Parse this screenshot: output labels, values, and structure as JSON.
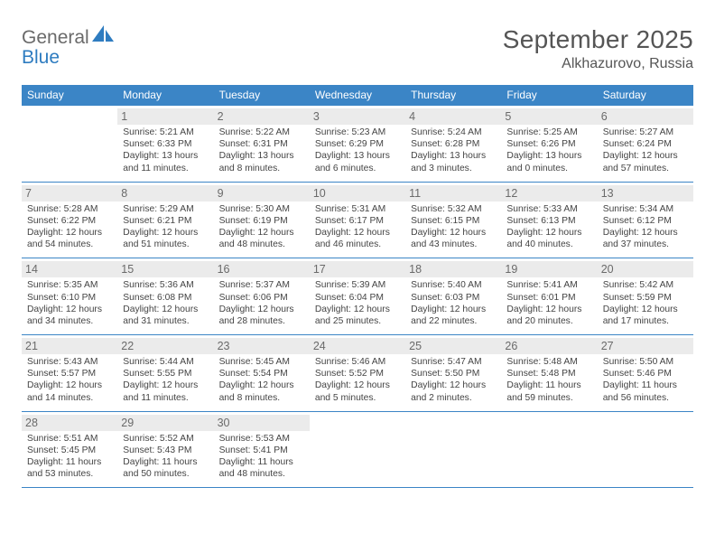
{
  "logo": {
    "word1": "General",
    "word2": "Blue"
  },
  "title": "September 2025",
  "location": "Alkhazurovo, Russia",
  "colors": {
    "header_bg": "#3b85c6",
    "header_text": "#ffffff",
    "daynum_bg": "#ebebeb",
    "daynum_text": "#6a6a6a",
    "body_text": "#444444",
    "title_text": "#555555",
    "rule": "#3b85c6"
  },
  "day_names": [
    "Sunday",
    "Monday",
    "Tuesday",
    "Wednesday",
    "Thursday",
    "Friday",
    "Saturday"
  ],
  "weeks": [
    [
      null,
      {
        "n": "1",
        "sr": "Sunrise: 5:21 AM",
        "ss": "Sunset: 6:33 PM",
        "d1": "Daylight: 13 hours",
        "d2": "and 11 minutes."
      },
      {
        "n": "2",
        "sr": "Sunrise: 5:22 AM",
        "ss": "Sunset: 6:31 PM",
        "d1": "Daylight: 13 hours",
        "d2": "and 8 minutes."
      },
      {
        "n": "3",
        "sr": "Sunrise: 5:23 AM",
        "ss": "Sunset: 6:29 PM",
        "d1": "Daylight: 13 hours",
        "d2": "and 6 minutes."
      },
      {
        "n": "4",
        "sr": "Sunrise: 5:24 AM",
        "ss": "Sunset: 6:28 PM",
        "d1": "Daylight: 13 hours",
        "d2": "and 3 minutes."
      },
      {
        "n": "5",
        "sr": "Sunrise: 5:25 AM",
        "ss": "Sunset: 6:26 PM",
        "d1": "Daylight: 13 hours",
        "d2": "and 0 minutes."
      },
      {
        "n": "6",
        "sr": "Sunrise: 5:27 AM",
        "ss": "Sunset: 6:24 PM",
        "d1": "Daylight: 12 hours",
        "d2": "and 57 minutes."
      }
    ],
    [
      {
        "n": "7",
        "sr": "Sunrise: 5:28 AM",
        "ss": "Sunset: 6:22 PM",
        "d1": "Daylight: 12 hours",
        "d2": "and 54 minutes."
      },
      {
        "n": "8",
        "sr": "Sunrise: 5:29 AM",
        "ss": "Sunset: 6:21 PM",
        "d1": "Daylight: 12 hours",
        "d2": "and 51 minutes."
      },
      {
        "n": "9",
        "sr": "Sunrise: 5:30 AM",
        "ss": "Sunset: 6:19 PM",
        "d1": "Daylight: 12 hours",
        "d2": "and 48 minutes."
      },
      {
        "n": "10",
        "sr": "Sunrise: 5:31 AM",
        "ss": "Sunset: 6:17 PM",
        "d1": "Daylight: 12 hours",
        "d2": "and 46 minutes."
      },
      {
        "n": "11",
        "sr": "Sunrise: 5:32 AM",
        "ss": "Sunset: 6:15 PM",
        "d1": "Daylight: 12 hours",
        "d2": "and 43 minutes."
      },
      {
        "n": "12",
        "sr": "Sunrise: 5:33 AM",
        "ss": "Sunset: 6:13 PM",
        "d1": "Daylight: 12 hours",
        "d2": "and 40 minutes."
      },
      {
        "n": "13",
        "sr": "Sunrise: 5:34 AM",
        "ss": "Sunset: 6:12 PM",
        "d1": "Daylight: 12 hours",
        "d2": "and 37 minutes."
      }
    ],
    [
      {
        "n": "14",
        "sr": "Sunrise: 5:35 AM",
        "ss": "Sunset: 6:10 PM",
        "d1": "Daylight: 12 hours",
        "d2": "and 34 minutes."
      },
      {
        "n": "15",
        "sr": "Sunrise: 5:36 AM",
        "ss": "Sunset: 6:08 PM",
        "d1": "Daylight: 12 hours",
        "d2": "and 31 minutes."
      },
      {
        "n": "16",
        "sr": "Sunrise: 5:37 AM",
        "ss": "Sunset: 6:06 PM",
        "d1": "Daylight: 12 hours",
        "d2": "and 28 minutes."
      },
      {
        "n": "17",
        "sr": "Sunrise: 5:39 AM",
        "ss": "Sunset: 6:04 PM",
        "d1": "Daylight: 12 hours",
        "d2": "and 25 minutes."
      },
      {
        "n": "18",
        "sr": "Sunrise: 5:40 AM",
        "ss": "Sunset: 6:03 PM",
        "d1": "Daylight: 12 hours",
        "d2": "and 22 minutes."
      },
      {
        "n": "19",
        "sr": "Sunrise: 5:41 AM",
        "ss": "Sunset: 6:01 PM",
        "d1": "Daylight: 12 hours",
        "d2": "and 20 minutes."
      },
      {
        "n": "20",
        "sr": "Sunrise: 5:42 AM",
        "ss": "Sunset: 5:59 PM",
        "d1": "Daylight: 12 hours",
        "d2": "and 17 minutes."
      }
    ],
    [
      {
        "n": "21",
        "sr": "Sunrise: 5:43 AM",
        "ss": "Sunset: 5:57 PM",
        "d1": "Daylight: 12 hours",
        "d2": "and 14 minutes."
      },
      {
        "n": "22",
        "sr": "Sunrise: 5:44 AM",
        "ss": "Sunset: 5:55 PM",
        "d1": "Daylight: 12 hours",
        "d2": "and 11 minutes."
      },
      {
        "n": "23",
        "sr": "Sunrise: 5:45 AM",
        "ss": "Sunset: 5:54 PM",
        "d1": "Daylight: 12 hours",
        "d2": "and 8 minutes."
      },
      {
        "n": "24",
        "sr": "Sunrise: 5:46 AM",
        "ss": "Sunset: 5:52 PM",
        "d1": "Daylight: 12 hours",
        "d2": "and 5 minutes."
      },
      {
        "n": "25",
        "sr": "Sunrise: 5:47 AM",
        "ss": "Sunset: 5:50 PM",
        "d1": "Daylight: 12 hours",
        "d2": "and 2 minutes."
      },
      {
        "n": "26",
        "sr": "Sunrise: 5:48 AM",
        "ss": "Sunset: 5:48 PM",
        "d1": "Daylight: 11 hours",
        "d2": "and 59 minutes."
      },
      {
        "n": "27",
        "sr": "Sunrise: 5:50 AM",
        "ss": "Sunset: 5:46 PM",
        "d1": "Daylight: 11 hours",
        "d2": "and 56 minutes."
      }
    ],
    [
      {
        "n": "28",
        "sr": "Sunrise: 5:51 AM",
        "ss": "Sunset: 5:45 PM",
        "d1": "Daylight: 11 hours",
        "d2": "and 53 minutes."
      },
      {
        "n": "29",
        "sr": "Sunrise: 5:52 AM",
        "ss": "Sunset: 5:43 PM",
        "d1": "Daylight: 11 hours",
        "d2": "and 50 minutes."
      },
      {
        "n": "30",
        "sr": "Sunrise: 5:53 AM",
        "ss": "Sunset: 5:41 PM",
        "d1": "Daylight: 11 hours",
        "d2": "and 48 minutes."
      },
      null,
      null,
      null,
      null
    ]
  ]
}
